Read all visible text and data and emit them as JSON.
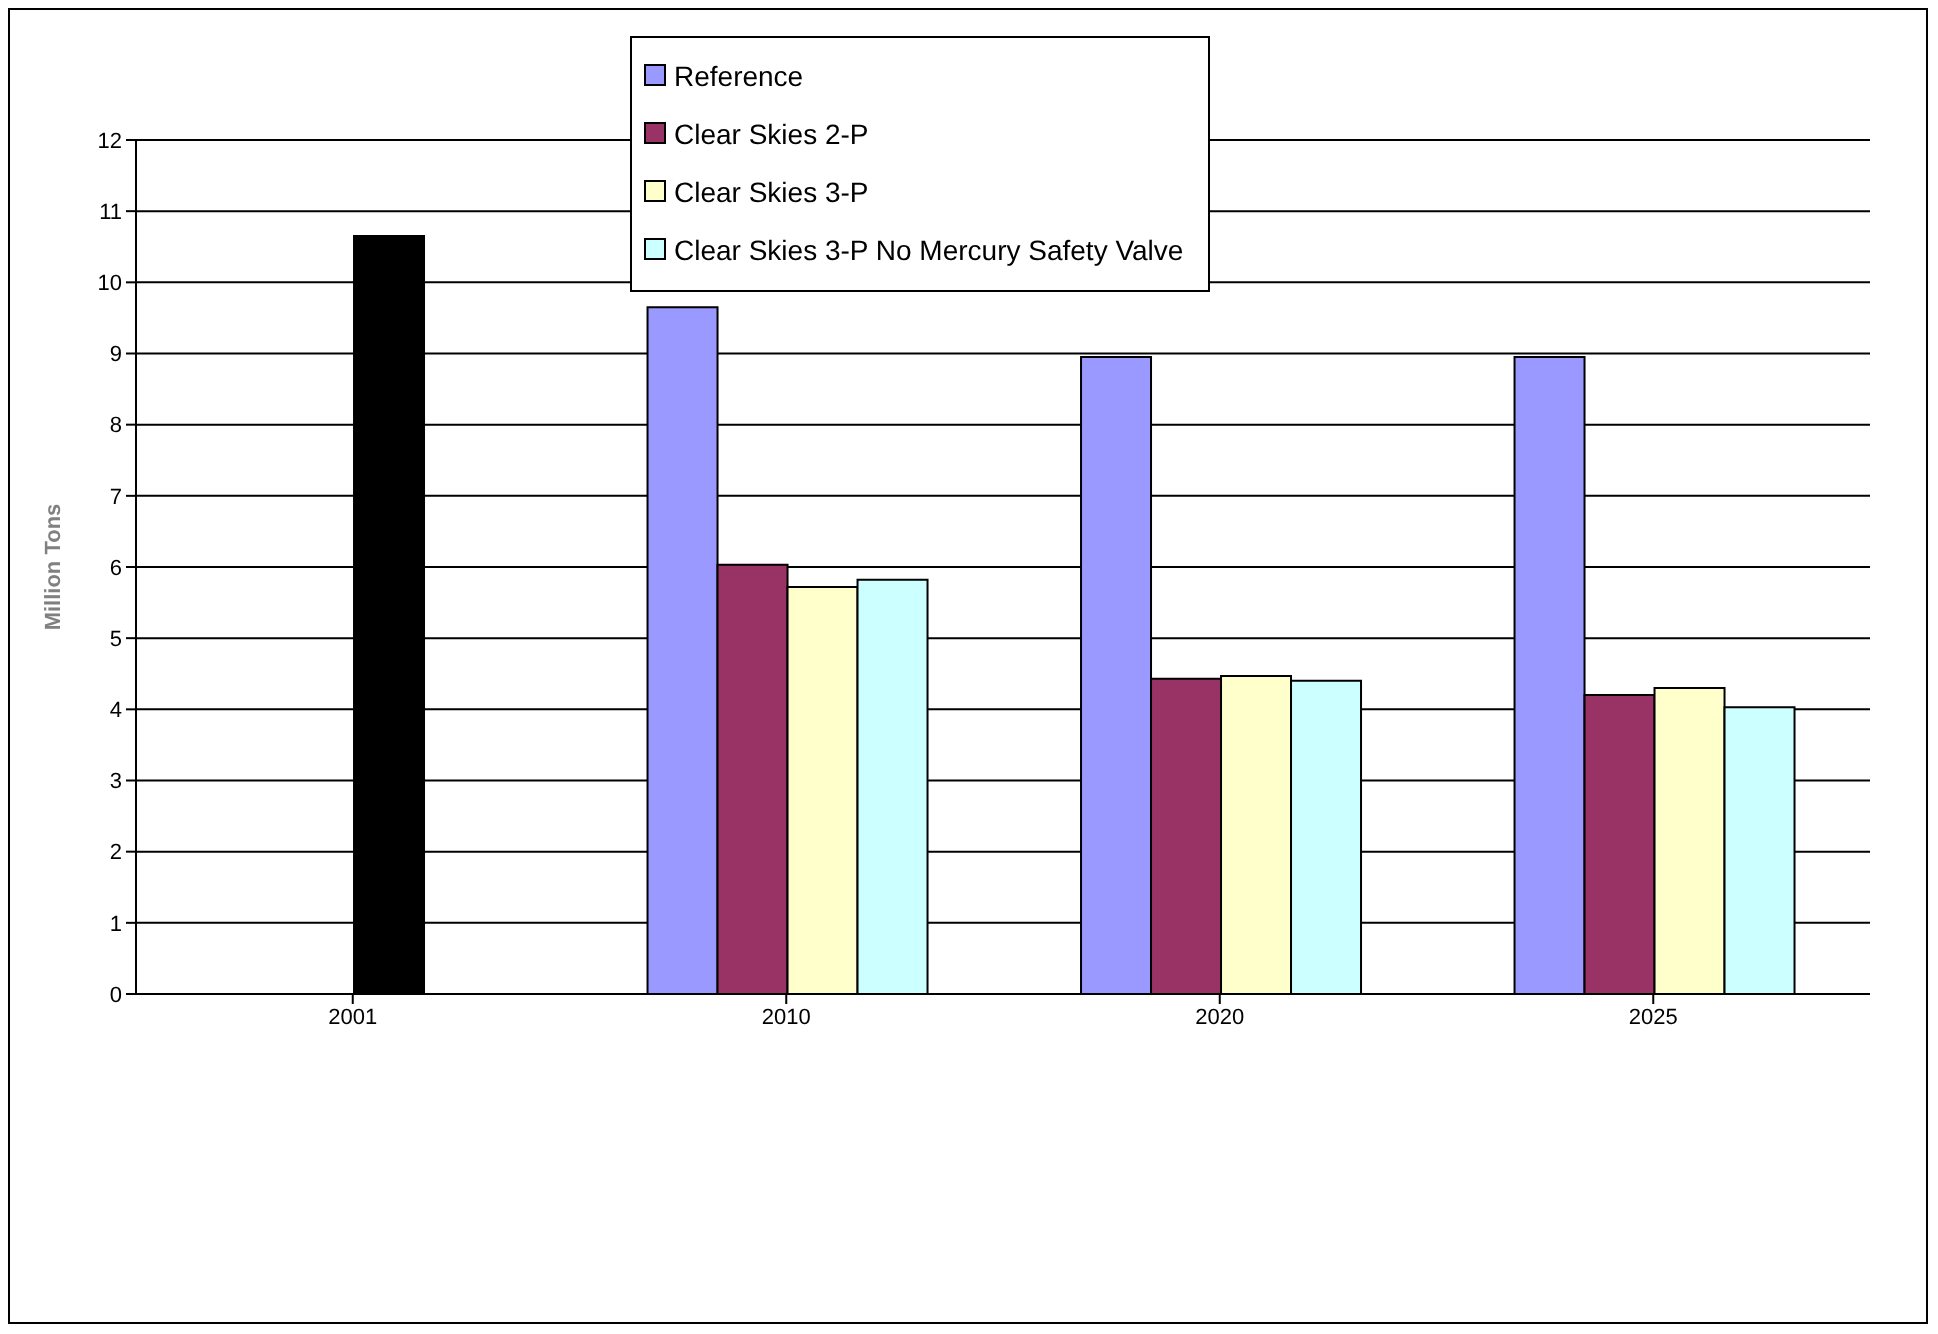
{
  "chart_data": {
    "type": "bar",
    "ylabel": "Million Tons",
    "categories": [
      "2001",
      "2010",
      "2020",
      "2025"
    ],
    "series": [
      {
        "name": "Reference",
        "color": "#9999ff",
        "values": [
          null,
          9.65,
          8.95,
          8.95
        ]
      },
      {
        "name": "Clear Skies 2-P",
        "color": "#993366",
        "values": [
          null,
          6.03,
          4.43,
          4.2
        ]
      },
      {
        "name": "Clear Skies 3-P",
        "color": "#ffffcc",
        "colors": [
          "#000000",
          "#ffffcc",
          "#ffffcc",
          "#ffffcc"
        ],
        "values": [
          10.65,
          5.72,
          4.47,
          4.3
        ]
      },
      {
        "name": "Clear Skies 3-P No Mercury Safety Valve",
        "color": "#ccffff",
        "values": [
          null,
          5.82,
          4.4,
          4.03
        ]
      }
    ],
    "ylim": [
      0,
      12
    ],
    "yticks": [
      0,
      1,
      2,
      3,
      4,
      5,
      6,
      7,
      8,
      9,
      10,
      11,
      12
    ],
    "grid": "y",
    "legend": "top"
  }
}
